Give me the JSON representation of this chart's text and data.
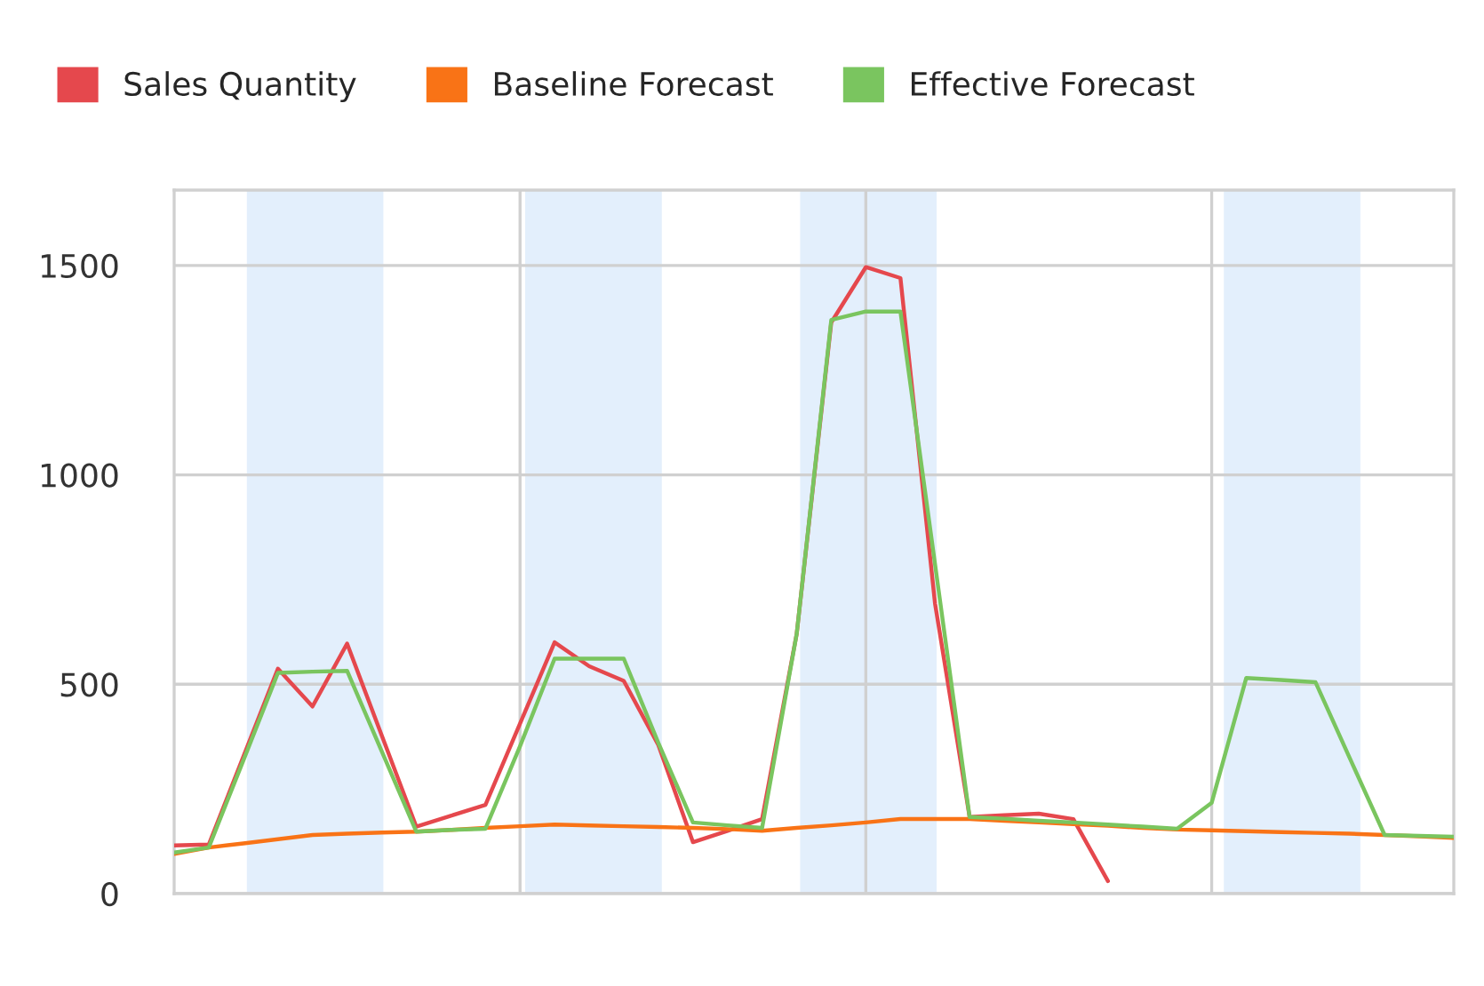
{
  "chart_data": {
    "type": "line",
    "categories": [
      null,
      null,
      null,
      null,
      null,
      null,
      null,
      null,
      null,
      null,
      null,
      null,
      null,
      null,
      null,
      null,
      null,
      null,
      null,
      null,
      null,
      null,
      null,
      null,
      null,
      null,
      null,
      null,
      null,
      null,
      null,
      null,
      null,
      null,
      null,
      null,
      null,
      null
    ],
    "series": [
      {
        "name": "Sales Quantity",
        "color": "#e5484d",
        "values": [
          115,
          117,
          327,
          537,
          447,
          597,
          378,
          160,
          186,
          212,
          406,
          600,
          543,
          508,
          355,
          123,
          150,
          178,
          620,
          1364,
          1496,
          1470,
          693,
          183,
          187,
          191,
          178,
          30,
          null,
          null,
          null,
          null,
          null,
          null,
          null,
          null,
          null,
          null
        ]
      },
      {
        "name": "Baseline Forecast",
        "color": "#f97316",
        "values": [
          95,
          110,
          120,
          130,
          140,
          143,
          146,
          148,
          152,
          157,
          161,
          165,
          163,
          161,
          159,
          157,
          154,
          150,
          157,
          163,
          170,
          178,
          178,
          178,
          174,
          170,
          166,
          162,
          157,
          153,
          151,
          149,
          147,
          145,
          143,
          140,
          137,
          133
        ]
      },
      {
        "name": "Effective Forecast",
        "color": "#7ac55f",
        "values": [
          98,
          110,
          318,
          527,
          530,
          532,
          340,
          148,
          152,
          155,
          352,
          561,
          561,
          561,
          360,
          170,
          163,
          157,
          620,
          1370,
          1390,
          1390,
          787,
          183,
          179,
          174,
          170,
          165,
          160,
          155,
          217,
          515,
          510,
          505,
          322,
          140,
          138,
          136
        ]
      }
    ],
    "ylim": [
      0,
      1680
    ],
    "yticks": [
      0,
      500,
      1000,
      1500
    ],
    "tick_labels": "y",
    "grid": true,
    "legend": "top left",
    "marker": "none",
    "line_style": "solid"
  }
}
